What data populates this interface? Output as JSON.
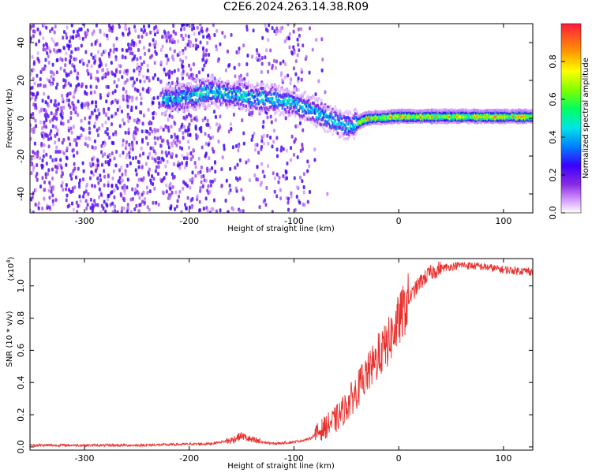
{
  "title": "C2E6.2024.263.14.38.R09",
  "colorbar": {
    "label": "Normalized spectral amplitude",
    "ticks": [
      "0.0",
      "0.2",
      "0.4",
      "0.6",
      "0.8"
    ]
  },
  "chart_data": [
    {
      "type": "heatmap",
      "xlabel": "Height of straight line (km)",
      "ylabel": "Frequency (Hz)",
      "xlim": [
        -352,
        128
      ],
      "ylim": [
        -50,
        50
      ],
      "xticks": [
        "-300",
        "-200",
        "-100",
        "0",
        "100"
      ],
      "yticks": [
        "-40",
        "-20",
        "0",
        "20",
        "40"
      ],
      "value_range": [
        0.0,
        1.0
      ],
      "ridge": [
        {
          "x": -220,
          "y": 10
        },
        {
          "x": -180,
          "y": 14
        },
        {
          "x": -150,
          "y": 12
        },
        {
          "x": -120,
          "y": 10
        },
        {
          "x": -100,
          "y": 8
        },
        {
          "x": -80,
          "y": 4
        },
        {
          "x": -60,
          "y": -2
        },
        {
          "x": -45,
          "y": -4
        },
        {
          "x": -30,
          "y": 0
        },
        {
          "x": 0,
          "y": 1
        },
        {
          "x": 50,
          "y": 1
        },
        {
          "x": 100,
          "y": 1
        },
        {
          "x": 128,
          "y": 1
        }
      ]
    },
    {
      "type": "line",
      "xlabel": "Height of straight line (km)",
      "ylabel": "SNR (10 * v/v)",
      "yscale_label": "(x10",
      "yscale_exp": "4",
      "xlim": [
        -352,
        128
      ],
      "ylim": [
        -0.02,
        1.17
      ],
      "xticks": [
        "-300",
        "-200",
        "-100",
        "0",
        "100"
      ],
      "yticks": [
        "0.0",
        "0.2",
        "0.4",
        "0.6",
        "0.8",
        "1.0"
      ],
      "series": [
        {
          "color": "#e8302e",
          "x": [
            -352,
            -250,
            -180,
            -160,
            -150,
            -140,
            -120,
            -100,
            -85,
            -75,
            -60,
            -50,
            -40,
            -30,
            -20,
            -10,
            0,
            10,
            20,
            30,
            40,
            60,
            80,
            100,
            128
          ],
          "y": [
            0.01,
            0.01,
            0.02,
            0.04,
            0.07,
            0.04,
            0.02,
            0.03,
            0.05,
            0.1,
            0.17,
            0.25,
            0.35,
            0.45,
            0.55,
            0.65,
            0.78,
            0.92,
            1.02,
            1.08,
            1.11,
            1.13,
            1.12,
            1.1,
            1.09
          ]
        }
      ]
    }
  ]
}
